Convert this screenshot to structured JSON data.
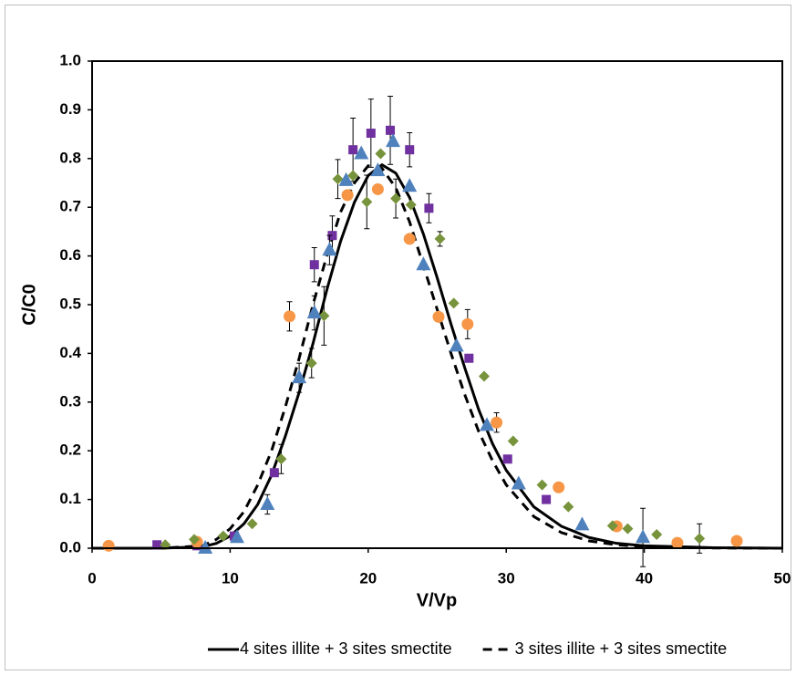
{
  "chart_data": {
    "type": "scatter",
    "xlabel": "V/Vp",
    "ylabel": "C/C0",
    "xlim": [
      0,
      50
    ],
    "xticks": [
      0,
      10,
      20,
      30,
      40,
      50
    ],
    "ylim": [
      0,
      1
    ],
    "yticks": [
      {
        "value": 0,
        "label": "0.0"
      },
      0.1,
      0.2,
      0.3,
      0.4,
      0.5,
      0.6,
      0.7,
      0.8,
      0.9,
      {
        "value": 1,
        "label": "1.0"
      }
    ],
    "grid": false,
    "legend": "bottom",
    "series": [
      {
        "type": "scatter",
        "marker": "square",
        "color": "#7030a0",
        "x": [
          4.7,
          7.6,
          10.3,
          13.2,
          16.1,
          17.4,
          18.9,
          20.2,
          21.6,
          23.0,
          24.4,
          27.3,
          30.1,
          32.9
        ],
        "values": [
          0.007,
          0.005,
          0.025,
          0.155,
          0.582,
          0.642,
          0.818,
          0.852,
          0.858,
          0.818,
          0.698,
          0.39,
          0.183,
          0.1
        ],
        "errors": [
          null,
          null,
          null,
          null,
          0.035,
          0.04,
          0.065,
          0.07,
          0.07,
          0.035,
          0.03,
          null,
          null,
          null
        ]
      },
      {
        "type": "scatter",
        "marker": "circle",
        "color": "#f79646",
        "x": [
          1.2,
          7.6,
          14.3,
          18.5,
          20.7,
          23.0,
          25.1,
          27.2,
          29.3,
          33.8,
          38.0,
          42.4,
          46.7
        ],
        "values": [
          0.005,
          0.013,
          0.476,
          0.725,
          0.737,
          0.635,
          0.475,
          0.46,
          0.258,
          0.125,
          0.045,
          0.011,
          0.015
        ],
        "errors": [
          null,
          null,
          0.03,
          null,
          null,
          null,
          null,
          0.03,
          0.02,
          null,
          null,
          null,
          null
        ]
      },
      {
        "type": "scatter",
        "marker": "diamond",
        "color": "#77933c",
        "x": [
          5.3,
          7.4,
          9.5,
          11.6,
          13.7,
          15.9,
          16.8,
          17.8,
          18.9,
          19.9,
          20.9,
          22.0,
          23.1,
          25.2,
          26.2,
          28.4,
          30.5,
          32.6,
          34.5,
          37.7,
          38.8,
          40.9,
          44.0
        ],
        "values": [
          0.007,
          0.018,
          0.025,
          0.05,
          0.183,
          0.38,
          0.477,
          0.758,
          0.765,
          0.711,
          0.81,
          0.718,
          0.705,
          0.635,
          0.503,
          0.353,
          0.22,
          0.13,
          0.085,
          0.046,
          0.04,
          0.028,
          0.02
        ],
        "errors": [
          null,
          null,
          null,
          null,
          0.03,
          0.03,
          0.06,
          0.04,
          null,
          0.055,
          null,
          0.04,
          null,
          0.015,
          null,
          null,
          null,
          null,
          null,
          null,
          null,
          null,
          0.03
        ]
      },
      {
        "type": "scatter",
        "marker": "triangle",
        "color": "#4f81bd",
        "x": [
          8.2,
          10.5,
          12.7,
          15.0,
          16.1,
          17.2,
          18.4,
          19.5,
          20.7,
          21.8,
          23.0,
          24.0,
          26.4,
          28.6,
          30.9,
          35.5,
          39.9
        ],
        "values": [
          0,
          0.022,
          0.09,
          0.35,
          0.483,
          0.612,
          0.755,
          0.81,
          0.775,
          0.835,
          0.743,
          0.582,
          0.415,
          0.252,
          0.132,
          0.048,
          0.022
        ],
        "errors": [
          null,
          null,
          0.02,
          0.03,
          0.035,
          0.03,
          null,
          null,
          null,
          null,
          null,
          null,
          null,
          null,
          null,
          null,
          0.06
        ]
      },
      {
        "type": "line",
        "name": "4 sites illite + 3 sites smectite",
        "color": "#000000",
        "dash": false,
        "x": [
          0,
          5,
          8,
          9,
          10,
          11,
          12,
          13,
          14,
          15,
          16,
          17,
          18,
          19,
          20,
          21,
          22,
          23,
          24,
          25,
          26,
          27,
          28,
          29,
          30,
          32,
          34,
          36,
          38,
          40,
          45,
          50
        ],
        "values": [
          0,
          0,
          0.003,
          0.01,
          0.025,
          0.05,
          0.09,
          0.15,
          0.23,
          0.32,
          0.42,
          0.53,
          0.63,
          0.71,
          0.765,
          0.787,
          0.77,
          0.72,
          0.645,
          0.555,
          0.46,
          0.37,
          0.285,
          0.215,
          0.16,
          0.085,
          0.045,
          0.022,
          0.01,
          0.005,
          0.001,
          0
        ]
      },
      {
        "type": "line",
        "name": "3 sites illite + 3 sites smectite",
        "color": "#000000",
        "dash": true,
        "x": [
          0,
          5,
          8,
          9,
          10,
          11,
          12,
          13,
          14,
          15,
          16,
          17,
          18,
          19,
          20,
          21,
          22,
          23,
          24,
          25,
          26,
          27,
          28,
          29,
          30,
          32,
          34,
          36,
          38,
          40,
          45,
          50
        ],
        "values": [
          0,
          0,
          0.005,
          0.018,
          0.04,
          0.075,
          0.13,
          0.2,
          0.29,
          0.39,
          0.5,
          0.6,
          0.69,
          0.75,
          0.785,
          0.78,
          0.74,
          0.67,
          0.58,
          0.49,
          0.4,
          0.315,
          0.24,
          0.18,
          0.13,
          0.065,
          0.032,
          0.015,
          0.007,
          0.003,
          0.0005,
          0
        ]
      }
    ]
  }
}
